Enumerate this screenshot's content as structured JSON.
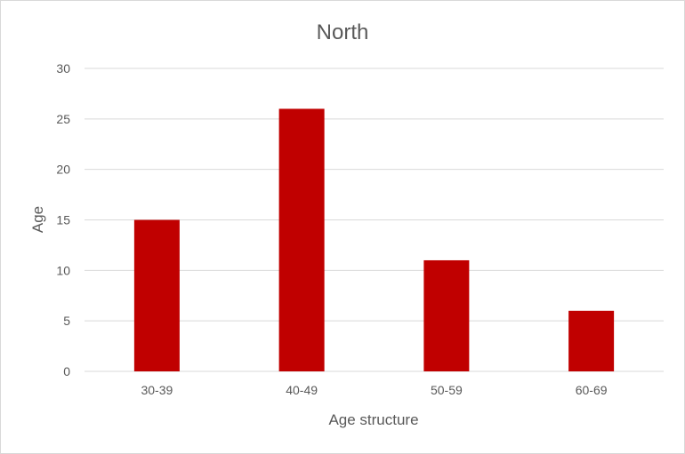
{
  "chart_data": {
    "type": "bar",
    "title": "North",
    "xlabel": "Age structure",
    "ylabel": "Age",
    "categories": [
      "30-39",
      "40-49",
      "50-59",
      "60-69"
    ],
    "values": [
      15,
      26,
      11,
      6
    ],
    "ylim": [
      0,
      30
    ],
    "yticks": [
      0,
      5,
      10,
      15,
      20,
      25,
      30
    ],
    "grid": true,
    "legend": "none",
    "bar_color": "#c00000",
    "gridline_color": "#d9d9d9"
  }
}
